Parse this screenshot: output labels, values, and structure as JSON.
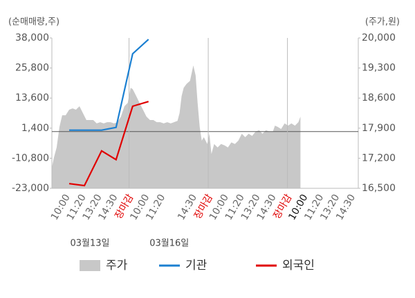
{
  "chart_data": {
    "type": "combo",
    "ylabel": "(순매매량,주)",
    "y2label": "(주가,원)",
    "ylim": [
      -23000,
      38000
    ],
    "yticks": [
      {
        "value": 38000,
        "label": "38,000"
      },
      {
        "value": 25800,
        "label": "25,800"
      },
      {
        "value": 13600,
        "label": "13,600"
      },
      {
        "value": 1400,
        "label": "1,400"
      },
      {
        "value": -10800,
        "label": "-10,800"
      },
      {
        "value": -23000,
        "label": "-23,000"
      }
    ],
    "y2lim": [
      16500,
      20000
    ],
    "y2ticks": [
      {
        "value": 20000,
        "label": "20,000"
      },
      {
        "value": 19300,
        "label": "19,300"
      },
      {
        "value": 18600,
        "label": "18,600"
      },
      {
        "value": 17900,
        "label": "17,900"
      },
      {
        "value": 17200,
        "label": "17,200"
      },
      {
        "value": 16500,
        "label": "16,500"
      }
    ],
    "xlim": [
      -0.87,
      18.47
    ],
    "categories": [
      "10:00",
      "11:20",
      "13:20",
      "14:30",
      "장마감",
      "10:00",
      "11:20",
      null,
      "14:30",
      "장마감",
      "10:00",
      "11:20",
      "13:20",
      "14:30",
      "장마감",
      "10:00",
      "11:20",
      "13:20",
      "14:30"
    ],
    "category_colors": [
      "#666",
      "#666",
      "#666",
      "#666",
      "#e00000",
      "#666",
      "#666",
      "#666",
      "#666",
      "#e00000",
      "#666",
      "#666",
      "#666",
      "#666",
      "#e00000",
      "#111",
      "#666",
      "#666",
      "#666"
    ],
    "xgrid": [
      4,
      9,
      14
    ],
    "zero_line": true,
    "annotations": [
      {
        "text": "03월13일",
        "x": 1.53
      },
      {
        "text": "03월16일",
        "x": 6.54
      }
    ],
    "legend": "bottom",
    "series": [
      {
        "name": "주가",
        "kind": "area",
        "axis": "y2",
        "color": "#c8c8c8",
        "x": [
          -0.87,
          -0.74,
          -0.57,
          -0.39,
          -0.22,
          0,
          0.22,
          0.44,
          0.65,
          0.87,
          1.09,
          1.31,
          1.53,
          1.74,
          1.96,
          2.18,
          2.4,
          2.62,
          2.83,
          3.05,
          3.27,
          3.49,
          3.71,
          3.92,
          4.1,
          4.23,
          4.45,
          4.66,
          4.88,
          5.1,
          5.32,
          5.54,
          5.75,
          5.97,
          6.19,
          6.41,
          6.63,
          6.84,
          7.06,
          7.19,
          7.32,
          7.45,
          7.63,
          7.85,
          8.06,
          8.2,
          8.33,
          8.46,
          8.59,
          8.72,
          8.94,
          9.07,
          9.2,
          9.37,
          9.59,
          9.81,
          10.03,
          10.24,
          10.46,
          10.68,
          10.9,
          11.12,
          11.33,
          11.55,
          11.77,
          11.99,
          12.21,
          12.42,
          12.64,
          12.86,
          13.08,
          13.21,
          13.38,
          13.6,
          13.82,
          14.04,
          14.25,
          14.47,
          14.69,
          14.82
        ],
        "values": [
          16980,
          17220,
          17450,
          17930,
          18200,
          18200,
          18330,
          18360,
          18330,
          18410,
          18250,
          18090,
          18090,
          18090,
          18010,
          18040,
          18010,
          18040,
          18040,
          18010,
          18040,
          18170,
          18410,
          18490,
          18840,
          18810,
          18650,
          18490,
          18330,
          18170,
          18090,
          18090,
          18040,
          18040,
          18010,
          18040,
          18010,
          18040,
          18070,
          18250,
          18650,
          18840,
          18930,
          19000,
          19360,
          19130,
          18490,
          17930,
          17610,
          17690,
          17530,
          17770,
          17300,
          17530,
          17450,
          17530,
          17500,
          17450,
          17570,
          17530,
          17610,
          17770,
          17690,
          17770,
          17720,
          17820,
          17850,
          17770,
          17850,
          17820,
          17820,
          17960,
          17930,
          17880,
          18010,
          17960,
          18010,
          17960,
          18040,
          18170
        ]
      },
      {
        "name": "기관",
        "kind": "line",
        "color": "#1a7fd1",
        "x": [
          0.22,
          2.27,
          3.18,
          4.23,
          5.23
        ],
        "values": [
          600,
          600,
          1700,
          31600,
          37400
        ]
      },
      {
        "name": "외국인",
        "kind": "line",
        "color": "#e00000",
        "x": [
          0.22,
          1.18,
          2.27,
          3.18,
          4.23,
          5.23
        ],
        "values": [
          -21100,
          -21900,
          -7800,
          -11400,
          10300,
          12200
        ]
      }
    ]
  }
}
